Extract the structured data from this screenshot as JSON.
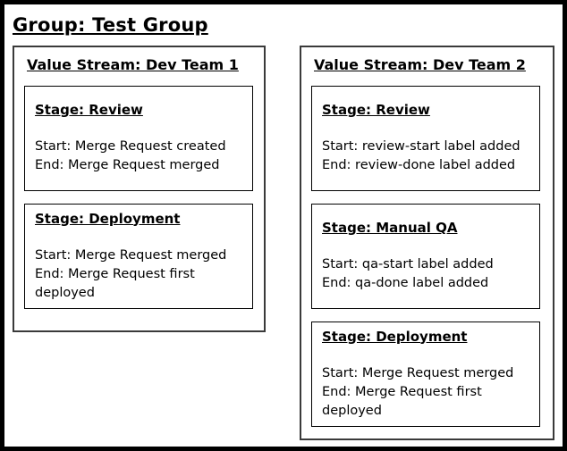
{
  "group": {
    "title": "Group: Test Group"
  },
  "value_streams": [
    {
      "title": "Value Stream: Dev Team 1",
      "stages": [
        {
          "title": "Stage: Review",
          "start": "Start: Merge Request created",
          "end": "End: Merge Request merged"
        },
        {
          "title": "Stage: Deployment",
          "start": "Start: Merge Request merged",
          "end": "End: Merge Request first deployed"
        }
      ]
    },
    {
      "title": "Value Stream: Dev Team 2",
      "stages": [
        {
          "title": "Stage: Review",
          "start": "Start: review-start label added",
          "end": "End: review-done label added"
        },
        {
          "title": "Stage: Manual QA",
          "start": "Start: qa-start label added",
          "end": "End: qa-done label added"
        },
        {
          "title": "Stage: Deployment",
          "start": "Start: Merge Request merged",
          "end": "End: Merge Request first deployed"
        }
      ]
    }
  ],
  "colors": {
    "background": "#ffffff",
    "text": "#000000",
    "outer_border": "#000000",
    "value_stream_border": "#3a3a3a",
    "stage_border": "#000000"
  }
}
